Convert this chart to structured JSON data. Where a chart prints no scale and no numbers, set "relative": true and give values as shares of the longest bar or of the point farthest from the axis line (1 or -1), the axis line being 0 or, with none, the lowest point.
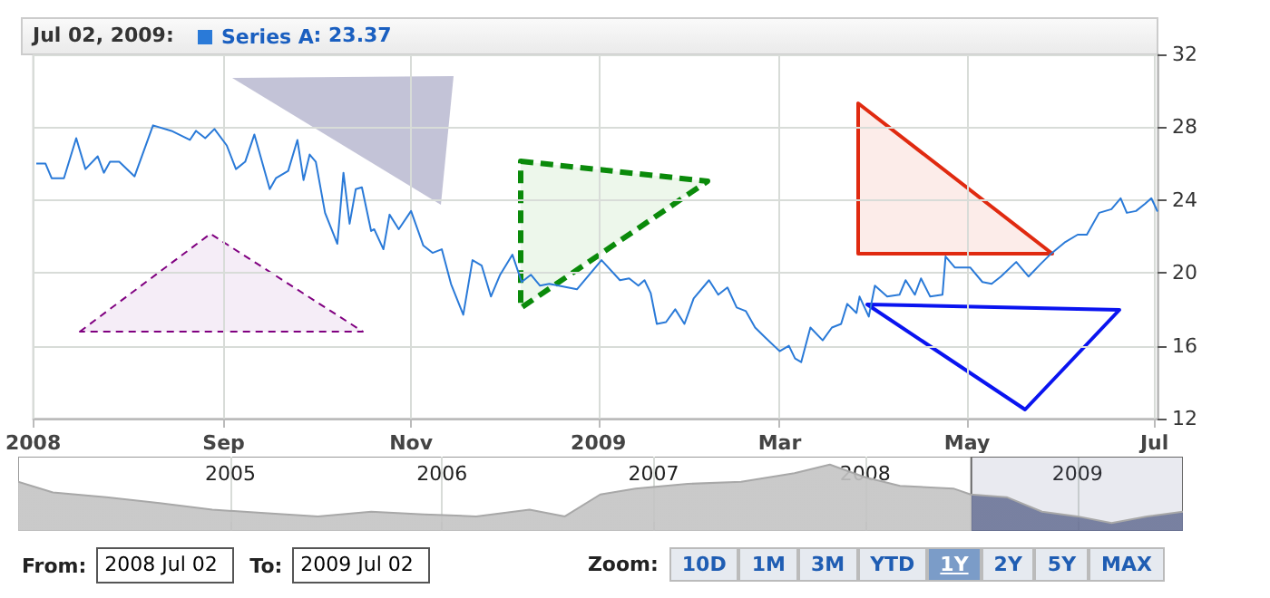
{
  "chart_data": [
    {
      "type": "line",
      "annotations": [
        "Jul 02, 2009:",
        ": 23.37"
      ],
      "legend": "top left",
      "grid": true,
      "xlim": [
        "2008-07-01",
        "2009-07-02"
      ],
      "xticks": [
        {
          "value": "2008-07-01",
          "label": "2008"
        },
        {
          "value": "2008-09-01",
          "label": "Sep"
        },
        {
          "value": "2008-11-01",
          "label": "Nov"
        },
        {
          "value": "2009-01-01",
          "label": "2009"
        },
        {
          "value": "2009-03-01",
          "label": "Mar"
        },
        {
          "value": "2009-05-01",
          "label": "May"
        },
        {
          "value": "2009-07-01",
          "label": "Jul"
        }
      ],
      "ylim": [
        12,
        32
      ],
      "yticks": [
        12,
        16,
        20,
        24,
        28,
        32
      ],
      "series": [
        {
          "name": "Series A",
          "color": "#2a7ad8",
          "x": [
            "2008-07-02",
            "2008-07-05",
            "2008-07-07",
            "2008-07-11",
            "2008-07-15",
            "2008-07-18",
            "2008-07-22",
            "2008-07-24",
            "2008-07-26",
            "2008-07-29",
            "2008-08-03",
            "2008-08-09",
            "2008-08-15",
            "2008-08-21",
            "2008-08-23",
            "2008-08-26",
            "2008-08-29",
            "2008-09-02",
            "2008-09-05",
            "2008-09-08",
            "2008-09-11",
            "2008-09-16",
            "2008-09-18",
            "2008-09-22",
            "2008-09-25",
            "2008-09-27",
            "2008-09-29",
            "2008-10-01",
            "2008-10-04",
            "2008-10-08",
            "2008-10-10",
            "2008-10-12",
            "2008-10-14",
            "2008-10-16",
            "2008-10-19",
            "2008-10-20",
            "2008-10-23",
            "2008-10-25",
            "2008-10-28",
            "2008-11-01",
            "2008-11-05",
            "2008-11-08",
            "2008-11-11",
            "2008-11-14",
            "2008-11-18",
            "2008-11-21",
            "2008-11-24",
            "2008-11-27",
            "2008-11-30",
            "2008-12-04",
            "2008-12-07",
            "2008-12-10",
            "2008-12-13",
            "2008-12-16",
            "2008-12-25",
            "2009-01-02",
            "2009-01-08",
            "2009-01-11",
            "2009-01-14",
            "2009-01-16",
            "2009-01-18",
            "2009-01-20",
            "2009-01-23",
            "2009-01-26",
            "2009-01-29",
            "2009-02-01",
            "2009-02-06",
            "2009-02-09",
            "2009-02-12",
            "2009-02-15",
            "2009-02-18",
            "2009-02-21",
            "2009-02-24",
            "2009-03-01",
            "2009-03-04",
            "2009-03-06",
            "2009-03-08",
            "2009-03-11",
            "2009-03-15",
            "2009-03-18",
            "2009-03-21",
            "2009-03-23",
            "2009-03-26",
            "2009-03-27",
            "2009-03-30",
            "2009-04-01",
            "2009-04-05",
            "2009-04-09",
            "2009-04-11",
            "2009-04-14",
            "2009-04-16",
            "2009-04-19",
            "2009-04-23",
            "2009-04-24",
            "2009-04-27",
            "2009-05-02",
            "2009-05-06",
            "2009-05-09",
            "2009-05-12",
            "2009-05-17",
            "2009-05-21",
            "2009-05-25",
            "2009-05-28",
            "2009-06-02",
            "2009-06-06",
            "2009-06-09",
            "2009-06-13",
            "2009-06-17",
            "2009-06-20",
            "2009-06-22",
            "2009-06-25",
            "2009-06-28",
            "2009-06-30",
            "2009-07-02"
          ],
          "values": [
            26.0,
            26.0,
            25.2,
            25.2,
            27.4,
            25.7,
            26.4,
            25.5,
            26.1,
            26.1,
            25.3,
            28.1,
            27.8,
            27.3,
            27.8,
            27.4,
            27.9,
            27.0,
            25.7,
            26.1,
            27.6,
            24.6,
            25.2,
            25.6,
            27.3,
            25.1,
            26.5,
            26.1,
            23.3,
            21.6,
            25.5,
            22.7,
            24.6,
            24.7,
            22.3,
            22.4,
            21.3,
            23.2,
            22.4,
            23.4,
            21.5,
            21.1,
            21.3,
            19.4,
            17.7,
            20.7,
            20.4,
            18.7,
            19.9,
            21.0,
            19.5,
            19.9,
            19.3,
            19.4,
            19.1,
            20.7,
            19.6,
            19.7,
            19.3,
            19.6,
            18.9,
            17.2,
            17.3,
            18.0,
            17.2,
            18.6,
            19.6,
            18.8,
            19.2,
            18.1,
            17.9,
            17.0,
            16.5,
            15.7,
            16.0,
            15.3,
            15.1,
            17.0,
            16.3,
            17.0,
            17.2,
            18.3,
            17.8,
            18.7,
            17.6,
            19.3,
            18.7,
            18.8,
            19.6,
            18.8,
            19.7,
            18.7,
            18.8,
            20.9,
            20.3,
            20.3,
            19.5,
            19.4,
            19.8,
            20.6,
            19.8,
            20.5,
            21.0,
            21.7,
            22.1,
            22.1,
            23.3,
            23.5,
            24.1,
            23.3,
            23.4,
            23.8,
            24.1,
            23.37
          ]
        }
      ]
    },
    {
      "type": "area",
      "relative": true,
      "grid": "x",
      "tick_labels": "x",
      "xlim": [
        "2004-01-01",
        "2009-07-02"
      ],
      "xticks": [
        "2005",
        "2006",
        "2007",
        "2008",
        "2009"
      ],
      "bands": [
        {
          "axis": "x",
          "from": "2008-07-02",
          "to": "2009-07-02"
        }
      ],
      "series": [
        {
          "color": "#c4c4c4",
          "x": [
            "2004-01-01",
            "2004-03-01",
            "2004-06-01",
            "2004-09-01",
            "2004-12-01",
            "2005-03-01",
            "2005-06-01",
            "2005-09-01",
            "2005-12-01",
            "2006-03-01",
            "2006-06-01",
            "2006-08-01",
            "2006-10-01",
            "2006-12-01",
            "2007-03-01",
            "2007-06-01",
            "2007-09-01",
            "2007-11-01",
            "2008-01-01",
            "2008-03-01",
            "2008-06-01",
            "2008-07-01",
            "2008-09-01",
            "2008-11-01",
            "2009-01-01",
            "2009-03-01",
            "2009-05-01",
            "2009-07-02"
          ],
          "values": [
            0.74,
            0.58,
            0.51,
            0.42,
            0.32,
            0.27,
            0.22,
            0.29,
            0.25,
            0.22,
            0.32,
            0.22,
            0.55,
            0.64,
            0.71,
            0.74,
            0.87,
            1.0,
            0.81,
            0.68,
            0.64,
            0.55,
            0.51,
            0.29,
            0.22,
            0.12,
            0.22,
            0.29
          ]
        }
      ]
    },
    {
      "type": "other",
      "annotations": [
        "From:",
        "2008 Jul 02",
        "To:",
        "2009 Jul 02",
        "Zoom:",
        "10D",
        "1M",
        "3M",
        "YTD",
        "1Y",
        "2Y",
        "5Y",
        "MAX"
      ]
    }
  ]
}
